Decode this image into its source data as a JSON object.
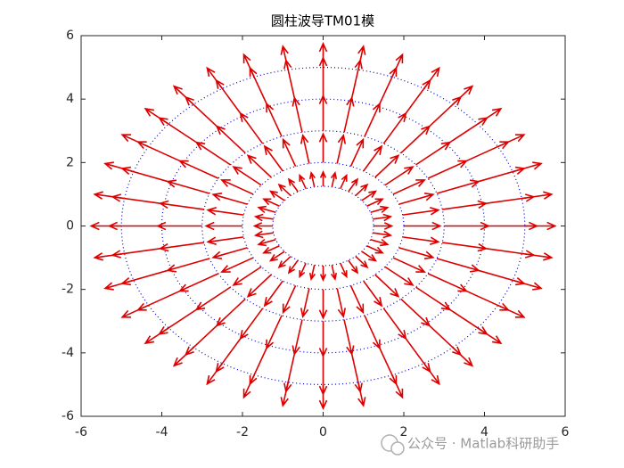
{
  "chart_data": {
    "type": "quiver",
    "title": "圆柱波导TM01模",
    "xlim": [
      -6,
      6
    ],
    "ylim": [
      -6,
      6
    ],
    "xticks": [
      -6,
      -4,
      -2,
      0,
      2,
      4,
      6
    ],
    "yticks": [
      -6,
      -4,
      -2,
      0,
      2,
      4,
      6
    ],
    "directions": 36,
    "radii": [
      1.25,
      2,
      3,
      4,
      5
    ],
    "lengths": [
      0.45,
      0.9,
      1.1,
      1.3,
      0.75
    ],
    "arrow_color": "#dd0000",
    "ring_color": "#0000cc",
    "watermark": "公众号 · Matlab科研助手"
  }
}
